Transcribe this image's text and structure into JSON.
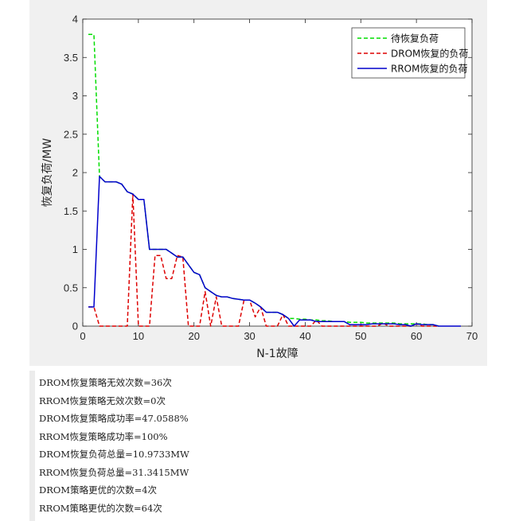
{
  "chart_data": {
    "type": "line",
    "xlabel": "N-1故障",
    "ylabel": "恢复负荷/MW",
    "xlim": [
      0,
      70
    ],
    "ylim": [
      0,
      4
    ],
    "xticks": [
      "0",
      "10",
      "20",
      "30",
      "40",
      "50",
      "60",
      "70"
    ],
    "yticks": [
      "0",
      "0.5",
      "1",
      "1.5",
      "2",
      "2.5",
      "3",
      "3.5",
      "4"
    ],
    "grid": false,
    "legend_position": "top-right",
    "series": [
      {
        "name": "待恢复负荷",
        "color": "#00dd00",
        "style": "dashed",
        "x": [
          1,
          2,
          3,
          4,
          5,
          6,
          7,
          8,
          9,
          10,
          11,
          12,
          13,
          14,
          15,
          16,
          17,
          18,
          19,
          20,
          21,
          22,
          23,
          24,
          25,
          26,
          27,
          28,
          29,
          30,
          31,
          32,
          33,
          34,
          35,
          36,
          37,
          38,
          39,
          40,
          41,
          42,
          43,
          44,
          45,
          46,
          47,
          48,
          49,
          50,
          51,
          52,
          53,
          54,
          55,
          56,
          57,
          58,
          59,
          60,
          61,
          62,
          63,
          64
        ],
        "y": [
          3.8,
          3.8,
          1.95,
          1.88,
          1.88,
          1.88,
          1.85,
          1.75,
          1.72,
          1.65,
          1.65,
          1.0,
          1.0,
          1.0,
          1.0,
          0.95,
          0.9,
          0.9,
          0.8,
          0.7,
          0.67,
          0.5,
          0.45,
          0.4,
          0.38,
          0.38,
          0.36,
          0.35,
          0.34,
          0.34,
          0.3,
          0.25,
          0.18,
          0.18,
          0.18,
          0.15,
          0.1,
          0.1,
          0.09,
          0.09,
          0.08,
          0.08,
          0.07,
          0.07,
          0.06,
          0.06,
          0.06,
          0.05,
          0.05,
          0.05,
          0.04,
          0.04,
          0.04,
          0.04,
          0.04,
          0.04,
          0.03,
          0.03,
          0.03,
          0.03,
          0.03,
          0.02,
          0.02,
          0.0
        ]
      },
      {
        "name": "DROM恢复的负荷",
        "color": "#dd0000",
        "style": "dashed",
        "x": [
          1,
          2,
          3,
          4,
          5,
          6,
          7,
          8,
          9,
          10,
          11,
          12,
          13,
          14,
          15,
          16,
          17,
          18,
          19,
          20,
          21,
          22,
          23,
          24,
          25,
          26,
          27,
          28,
          29,
          30,
          31,
          32,
          33,
          34,
          35,
          36,
          37,
          38,
          39,
          40,
          41,
          42,
          43,
          44,
          45,
          46,
          47,
          48,
          49,
          50,
          51,
          52,
          53,
          54,
          55,
          56,
          57,
          58,
          59,
          60,
          61,
          62,
          63,
          64
        ],
        "y": [
          0.25,
          0.25,
          0.0,
          0.0,
          0.0,
          0.0,
          0.0,
          0.0,
          1.72,
          0.0,
          0.0,
          0.0,
          0.92,
          0.92,
          0.62,
          0.62,
          0.92,
          0.9,
          0.0,
          0.0,
          0.0,
          0.45,
          0.0,
          0.38,
          0.0,
          0.0,
          0.0,
          0.0,
          0.34,
          0.34,
          0.12,
          0.25,
          0.0,
          0.0,
          0.0,
          0.15,
          0.0,
          0.0,
          0.0,
          0.0,
          0.0,
          0.08,
          0.0,
          0.0,
          0.0,
          0.0,
          0.0,
          0.0,
          0.0,
          0.0,
          0.0,
          0.0,
          0.0,
          0.04,
          0.0,
          0.0,
          0.0,
          0.0,
          0.0,
          0.03,
          0.0,
          0.0,
          0.0,
          0.0
        ]
      },
      {
        "name": "RROM恢复的负荷",
        "color": "#0000cc",
        "style": "solid",
        "x": [
          1,
          2,
          3,
          4,
          5,
          6,
          7,
          8,
          9,
          10,
          11,
          12,
          13,
          14,
          15,
          16,
          17,
          18,
          19,
          20,
          21,
          22,
          23,
          24,
          25,
          26,
          27,
          28,
          29,
          30,
          31,
          32,
          33,
          34,
          35,
          36,
          37,
          38,
          39,
          40,
          41,
          42,
          43,
          44,
          45,
          46,
          47,
          48,
          49,
          50,
          51,
          52,
          53,
          54,
          55,
          56,
          57,
          58,
          59,
          60,
          61,
          62,
          63,
          64,
          65,
          66,
          67,
          68
        ],
        "y": [
          0.25,
          0.25,
          1.95,
          1.88,
          1.88,
          1.88,
          1.85,
          1.75,
          1.72,
          1.65,
          1.65,
          1.0,
          1.0,
          1.0,
          1.0,
          0.95,
          0.9,
          0.9,
          0.8,
          0.7,
          0.67,
          0.5,
          0.45,
          0.4,
          0.38,
          0.38,
          0.36,
          0.35,
          0.34,
          0.34,
          0.3,
          0.25,
          0.18,
          0.18,
          0.18,
          0.15,
          0.1,
          0.0,
          0.08,
          0.08,
          0.08,
          0.06,
          0.06,
          0.06,
          0.06,
          0.06,
          0.06,
          0.02,
          0.02,
          0.02,
          0.02,
          0.03,
          0.03,
          0.03,
          0.03,
          0.03,
          0.02,
          0.02,
          0.0,
          0.03,
          0.02,
          0.02,
          0.02,
          0.0,
          0.0,
          0.0,
          0.0,
          0.0
        ]
      }
    ]
  },
  "console": {
    "lines": [
      "DROM恢复策略无效次数=36次",
      "RROM恢复策略无效次数=0次",
      "DROM恢复策略成功率=47.0588%",
      "RROM恢复策略成功率=100%",
      "DROM恢复负荷总量=10.9733MW",
      "RROM恢复负荷总量=31.3415MW",
      "DROM策略更优的次数=4次",
      "RROM策略更优的次数=64次"
    ]
  }
}
